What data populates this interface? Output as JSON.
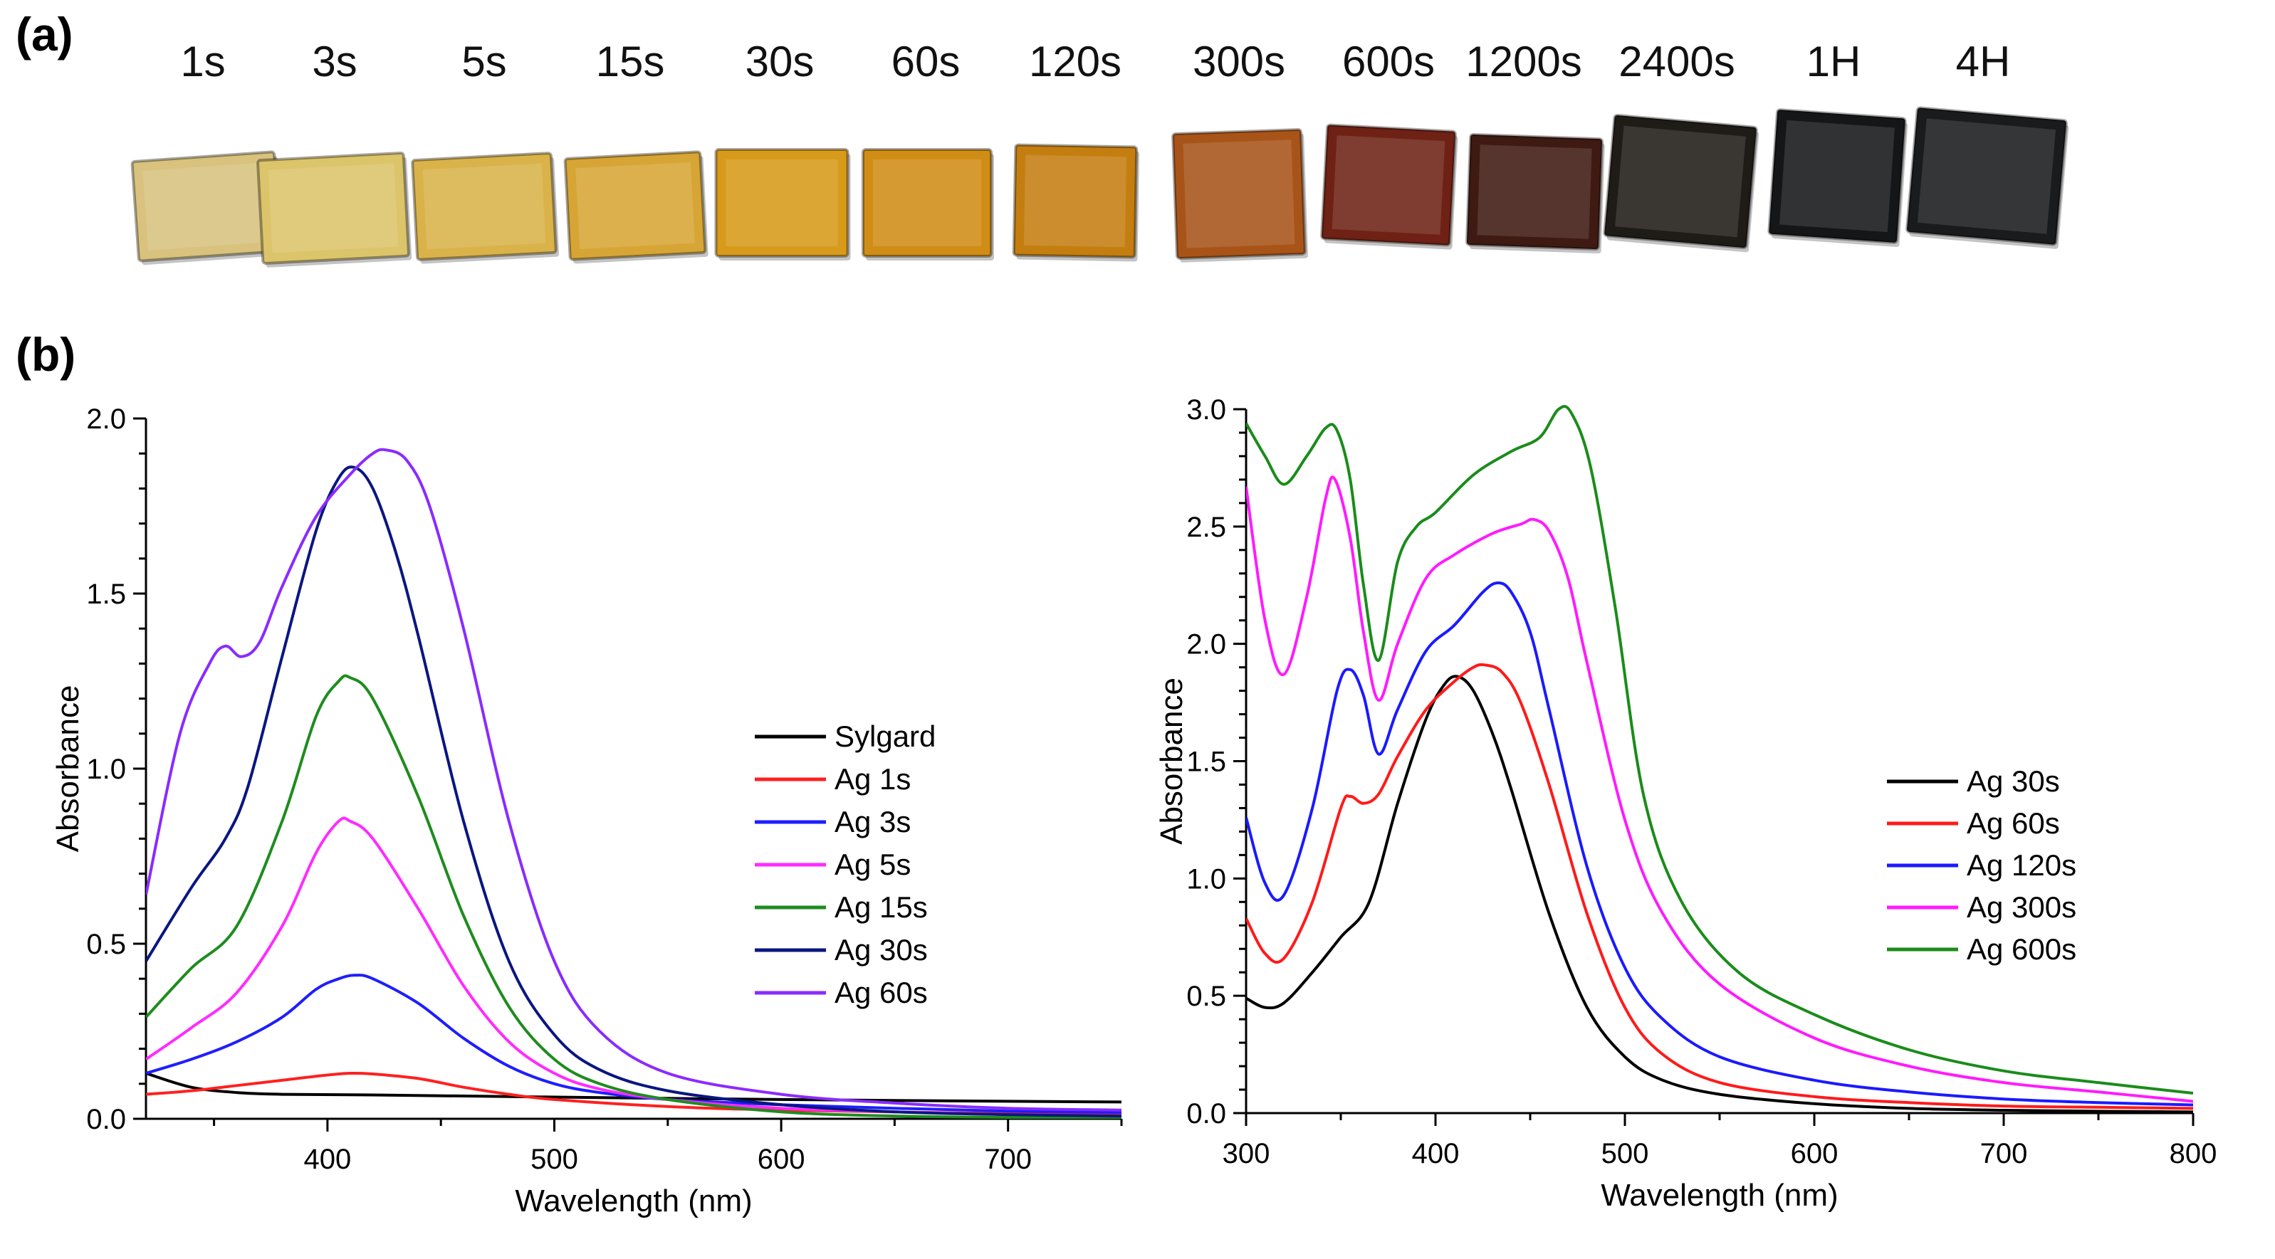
{
  "panel_labels": {
    "a": "(a)",
    "b": "(b)"
  },
  "samples": [
    {
      "label": "1s",
      "color": "#d8c27e"
    },
    {
      "label": "3s",
      "color": "#dcc46a"
    },
    {
      "label": "5s",
      "color": "#d9b34a"
    },
    {
      "label": "15s",
      "color": "#d6a535"
    },
    {
      "label": "30s",
      "color": "#d89a1a"
    },
    {
      "label": "60s",
      "color": "#d08d15"
    },
    {
      "label": "120s",
      "color": "#c47e10"
    },
    {
      "label": "300s",
      "color": "#a85418"
    },
    {
      "label": "600s",
      "color": "#6e2114"
    },
    {
      "label": "1200s",
      "color": "#3e1a12"
    },
    {
      "label": "2400s",
      "color": "#1f1c17"
    },
    {
      "label": "1H",
      "color": "#151618"
    },
    {
      "label": "4H",
      "color": "#1a1b1c"
    }
  ],
  "chart_data": [
    {
      "type": "line",
      "title": "",
      "xlabel": "Wavelength (nm)",
      "ylabel": "Absorbance",
      "xlim": [
        320,
        750
      ],
      "ylim": [
        0,
        2.0
      ],
      "xticks": [
        400,
        500,
        600,
        700
      ],
      "yticks": [
        0.0,
        0.5,
        1.0,
        1.5,
        2.0
      ],
      "ytick_labels": [
        "0.0",
        "0.5",
        "1.0",
        "1.5",
        "2.0"
      ],
      "legend_position": "center-right",
      "series": [
        {
          "name": "Sylgard",
          "color": "#000000",
          "points": [
            [
              320,
              0.13
            ],
            [
              340,
              0.09
            ],
            [
              360,
              0.075
            ],
            [
              380,
              0.07
            ],
            [
              420,
              0.068
            ],
            [
              500,
              0.062
            ],
            [
              600,
              0.055
            ],
            [
              700,
              0.05
            ],
            [
              750,
              0.048
            ]
          ]
        },
        {
          "name": "Ag 1s",
          "color": "#ff2020",
          "points": [
            [
              320,
              0.07
            ],
            [
              340,
              0.08
            ],
            [
              360,
              0.095
            ],
            [
              380,
              0.11
            ],
            [
              400,
              0.125
            ],
            [
              410,
              0.13
            ],
            [
              420,
              0.128
            ],
            [
              440,
              0.115
            ],
            [
              460,
              0.09
            ],
            [
              480,
              0.07
            ],
            [
              500,
              0.055
            ],
            [
              550,
              0.035
            ],
            [
              600,
              0.025
            ],
            [
              700,
              0.015
            ],
            [
              750,
              0.012
            ]
          ]
        },
        {
          "name": "Ag 3s",
          "color": "#1e1eff",
          "points": [
            [
              320,
              0.13
            ],
            [
              340,
              0.17
            ],
            [
              360,
              0.22
            ],
            [
              380,
              0.29
            ],
            [
              395,
              0.37
            ],
            [
              405,
              0.4
            ],
            [
              412,
              0.41
            ],
            [
              420,
              0.4
            ],
            [
              440,
              0.33
            ],
            [
              460,
              0.23
            ],
            [
              480,
              0.15
            ],
            [
              500,
              0.1
            ],
            [
              520,
              0.075
            ],
            [
              550,
              0.055
            ],
            [
              600,
              0.04
            ],
            [
              650,
              0.03
            ],
            [
              700,
              0.022
            ],
            [
              750,
              0.018
            ]
          ]
        },
        {
          "name": "Ag 5s",
          "color": "#ff2bff",
          "points": [
            [
              320,
              0.17
            ],
            [
              340,
              0.26
            ],
            [
              360,
              0.36
            ],
            [
              380,
              0.55
            ],
            [
              395,
              0.76
            ],
            [
              405,
              0.85
            ],
            [
              410,
              0.85
            ],
            [
              420,
              0.8
            ],
            [
              440,
              0.6
            ],
            [
              460,
              0.38
            ],
            [
              480,
              0.22
            ],
            [
              500,
              0.13
            ],
            [
              520,
              0.085
            ],
            [
              550,
              0.055
            ],
            [
              600,
              0.03
            ],
            [
              650,
              0.02
            ],
            [
              700,
              0.012
            ],
            [
              750,
              0.008
            ]
          ]
        },
        {
          "name": "Ag 15s",
          "color": "#1e8c1e",
          "points": [
            [
              320,
              0.29
            ],
            [
              340,
              0.43
            ],
            [
              360,
              0.55
            ],
            [
              380,
              0.85
            ],
            [
              395,
              1.15
            ],
            [
              405,
              1.25
            ],
            [
              410,
              1.26
            ],
            [
              420,
              1.2
            ],
            [
              440,
              0.92
            ],
            [
              460,
              0.58
            ],
            [
              480,
              0.32
            ],
            [
              500,
              0.17
            ],
            [
              520,
              0.1
            ],
            [
              550,
              0.055
            ],
            [
              600,
              0.02
            ],
            [
              650,
              0.008
            ],
            [
              700,
              0.004
            ],
            [
              750,
              0.004
            ]
          ]
        },
        {
          "name": "Ag 30s",
          "color": "#0a1680",
          "points": [
            [
              320,
              0.45
            ],
            [
              340,
              0.66
            ],
            [
              355,
              0.8
            ],
            [
              365,
              0.95
            ],
            [
              380,
              1.32
            ],
            [
              395,
              1.68
            ],
            [
              405,
              1.83
            ],
            [
              412,
              1.86
            ],
            [
              420,
              1.8
            ],
            [
              430,
              1.62
            ],
            [
              440,
              1.38
            ],
            [
              460,
              0.85
            ],
            [
              480,
              0.45
            ],
            [
              500,
              0.24
            ],
            [
              520,
              0.14
            ],
            [
              550,
              0.08
            ],
            [
              600,
              0.04
            ],
            [
              650,
              0.02
            ],
            [
              700,
              0.012
            ],
            [
              750,
              0.008
            ]
          ]
        },
        {
          "name": "Ag 60s",
          "color": "#8a2bff",
          "points": [
            [
              320,
              0.64
            ],
            [
              335,
              1.1
            ],
            [
              348,
              1.3
            ],
            [
              355,
              1.35
            ],
            [
              362,
              1.32
            ],
            [
              370,
              1.36
            ],
            [
              380,
              1.52
            ],
            [
              395,
              1.72
            ],
            [
              410,
              1.84
            ],
            [
              420,
              1.9
            ],
            [
              426,
              1.91
            ],
            [
              435,
              1.88
            ],
            [
              445,
              1.75
            ],
            [
              460,
              1.4
            ],
            [
              480,
              0.85
            ],
            [
              500,
              0.45
            ],
            [
              520,
              0.25
            ],
            [
              550,
              0.13
            ],
            [
              600,
              0.07
            ],
            [
              650,
              0.045
            ],
            [
              700,
              0.03
            ],
            [
              750,
              0.025
            ]
          ]
        }
      ]
    },
    {
      "type": "line",
      "title": "",
      "xlabel": "Wavelength (nm)",
      "ylabel": "Absorbance",
      "xlim": [
        300,
        800
      ],
      "ylim": [
        0,
        3.0
      ],
      "xticks": [
        300,
        400,
        500,
        600,
        700,
        800
      ],
      "yticks": [
        0.0,
        0.5,
        1.0,
        1.5,
        2.0,
        2.5,
        3.0
      ],
      "ytick_labels": [
        "0.0",
        "0.5",
        "1.0",
        "1.5",
        "2.0",
        "2.5",
        "3.0"
      ],
      "legend_position": "center-right",
      "series": [
        {
          "name": "Ag 30s",
          "color": "#000000",
          "points": [
            [
              300,
              0.49
            ],
            [
              310,
              0.45
            ],
            [
              320,
              0.47
            ],
            [
              335,
              0.6
            ],
            [
              350,
              0.75
            ],
            [
              365,
              0.9
            ],
            [
              380,
              1.32
            ],
            [
              395,
              1.68
            ],
            [
              405,
              1.83
            ],
            [
              412,
              1.86
            ],
            [
              420,
              1.8
            ],
            [
              430,
              1.62
            ],
            [
              440,
              1.38
            ],
            [
              460,
              0.85
            ],
            [
              480,
              0.45
            ],
            [
              500,
              0.24
            ],
            [
              520,
              0.14
            ],
            [
              550,
              0.08
            ],
            [
              600,
              0.04
            ],
            [
              650,
              0.02
            ],
            [
              700,
              0.012
            ],
            [
              750,
              0.008
            ],
            [
              800,
              0.005
            ]
          ]
        },
        {
          "name": "Ag 60s",
          "color": "#ff1a1a",
          "points": [
            [
              300,
              0.83
            ],
            [
              310,
              0.68
            ],
            [
              320,
              0.66
            ],
            [
              335,
              0.9
            ],
            [
              350,
              1.3
            ],
            [
              355,
              1.35
            ],
            [
              362,
              1.32
            ],
            [
              370,
              1.36
            ],
            [
              380,
              1.52
            ],
            [
              395,
              1.72
            ],
            [
              410,
              1.84
            ],
            [
              420,
              1.9
            ],
            [
              426,
              1.91
            ],
            [
              435,
              1.88
            ],
            [
              445,
              1.75
            ],
            [
              460,
              1.4
            ],
            [
              480,
              0.85
            ],
            [
              500,
              0.45
            ],
            [
              520,
              0.25
            ],
            [
              550,
              0.13
            ],
            [
              600,
              0.07
            ],
            [
              650,
              0.045
            ],
            [
              700,
              0.03
            ],
            [
              750,
              0.025
            ],
            [
              800,
              0.02
            ]
          ]
        },
        {
          "name": "Ag 120s",
          "color": "#1a1aff",
          "points": [
            [
              300,
              1.26
            ],
            [
              310,
              0.98
            ],
            [
              320,
              0.93
            ],
            [
              335,
              1.3
            ],
            [
              348,
              1.8
            ],
            [
              355,
              1.89
            ],
            [
              362,
              1.78
            ],
            [
              370,
              1.53
            ],
            [
              380,
              1.72
            ],
            [
              395,
              1.97
            ],
            [
              410,
              2.08
            ],
            [
              425,
              2.22
            ],
            [
              433,
              2.26
            ],
            [
              440,
              2.22
            ],
            [
              450,
              2.05
            ],
            [
              460,
              1.72
            ],
            [
              480,
              1.05
            ],
            [
              500,
              0.62
            ],
            [
              520,
              0.4
            ],
            [
              550,
              0.24
            ],
            [
              600,
              0.14
            ],
            [
              650,
              0.09
            ],
            [
              700,
              0.06
            ],
            [
              750,
              0.045
            ],
            [
              800,
              0.035
            ]
          ]
        },
        {
          "name": "Ag 300s",
          "color": "#ff1aff",
          "points": [
            [
              300,
              2.67
            ],
            [
              310,
              2.1
            ],
            [
              320,
              1.87
            ],
            [
              332,
              2.2
            ],
            [
              342,
              2.62
            ],
            [
              347,
              2.7
            ],
            [
              355,
              2.45
            ],
            [
              362,
              2.05
            ],
            [
              370,
              1.76
            ],
            [
              380,
              2.0
            ],
            [
              395,
              2.28
            ],
            [
              410,
              2.38
            ],
            [
              430,
              2.47
            ],
            [
              445,
              2.51
            ],
            [
              452,
              2.53
            ],
            [
              460,
              2.48
            ],
            [
              470,
              2.28
            ],
            [
              480,
              1.92
            ],
            [
              500,
              1.25
            ],
            [
              520,
              0.85
            ],
            [
              550,
              0.55
            ],
            [
              600,
              0.32
            ],
            [
              650,
              0.2
            ],
            [
              700,
              0.13
            ],
            [
              750,
              0.09
            ],
            [
              800,
              0.05
            ]
          ]
        },
        {
          "name": "Ag 600s",
          "color": "#1a8c1a",
          "points": [
            [
              300,
              2.94
            ],
            [
              310,
              2.8
            ],
            [
              320,
              2.68
            ],
            [
              332,
              2.8
            ],
            [
              342,
              2.92
            ],
            [
              348,
              2.91
            ],
            [
              355,
              2.7
            ],
            [
              362,
              2.25
            ],
            [
              370,
              1.93
            ],
            [
              380,
              2.35
            ],
            [
              390,
              2.5
            ],
            [
              400,
              2.56
            ],
            [
              420,
              2.72
            ],
            [
              440,
              2.82
            ],
            [
              455,
              2.88
            ],
            [
              465,
              3.0
            ],
            [
              472,
              2.98
            ],
            [
              482,
              2.75
            ],
            [
              495,
              2.15
            ],
            [
              510,
              1.35
            ],
            [
              530,
              0.9
            ],
            [
              560,
              0.6
            ],
            [
              600,
              0.42
            ],
            [
              650,
              0.27
            ],
            [
              700,
              0.18
            ],
            [
              750,
              0.13
            ],
            [
              800,
              0.085
            ]
          ]
        }
      ]
    }
  ]
}
